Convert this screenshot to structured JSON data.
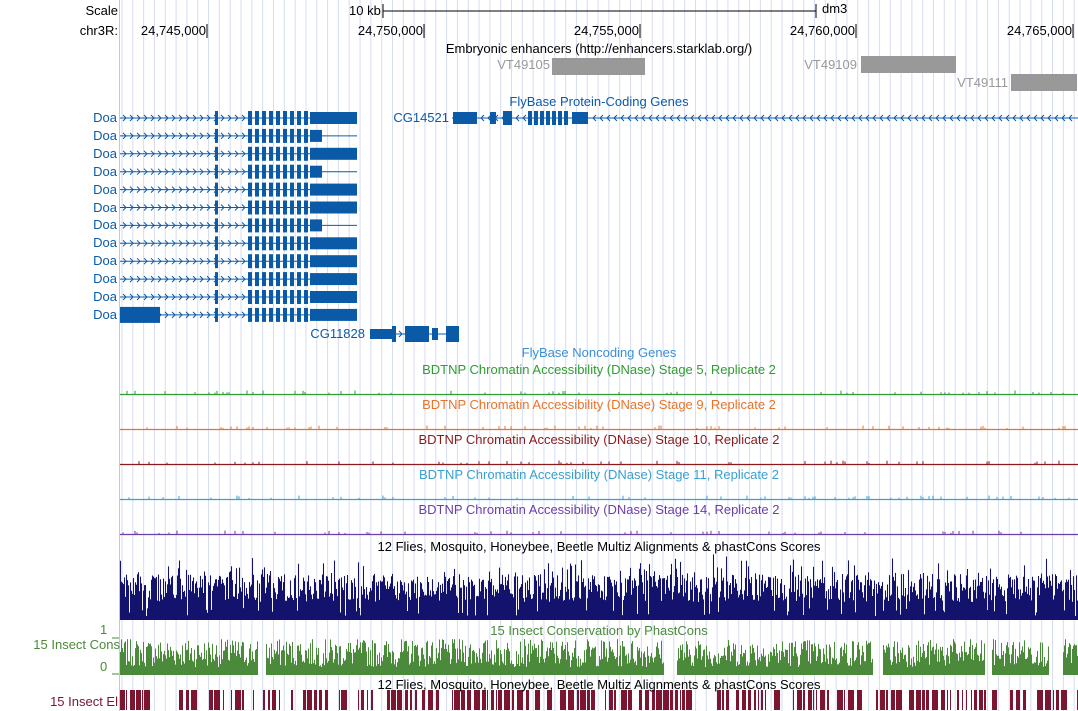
{
  "ruler": {
    "scale_label": "Scale",
    "scale_bar_label": "10 kb",
    "assembly": "dm3",
    "chrom_label": "chr3R:",
    "positions": [
      "24,745,000",
      "24,750,000",
      "24,755,000",
      "24,760,000",
      "24,765,000"
    ]
  },
  "tracks": {
    "enhancers": {
      "title": "Embryonic enhancers (http://enhancers.starklab.org/)",
      "items": [
        "VT49105",
        "VT49109",
        "VT49111"
      ],
      "color": "#999999"
    },
    "protein_coding": {
      "title": "FlyBase Protein-Coding Genes",
      "color": "#0b5aa8",
      "doa_label": "Doa",
      "doa_count": 12,
      "genes": [
        "CG14521",
        "CG11828"
      ]
    },
    "noncoding": {
      "title": "FlyBase Noncoding Genes",
      "color": "#3b8fd6"
    },
    "dnase": [
      {
        "title": "BDTNP Chromatin Accessibility (DNase) Stage 5, Replicate 2",
        "color": "#2e9e2e"
      },
      {
        "title": "BDTNP Chromatin Accessibility (DNase) Stage 9, Replicate 2",
        "color": "#e8742a"
      },
      {
        "title": "BDTNP Chromatin Accessibility (DNase) Stage 10, Replicate 2",
        "color": "#8b1a1a"
      },
      {
        "title": "BDTNP Chromatin Accessibility (DNase) Stage 11, Replicate 2",
        "color": "#3aa0d0"
      },
      {
        "title": "BDTNP Chromatin Accessibility (DNase) Stage 14, Replicate 2",
        "color": "#6a3fa8"
      }
    ],
    "multiz": {
      "title": "12 Flies, Mosquito, Honeybee, Beetle Multiz Alignments & phastCons Scores",
      "color": "#13136e"
    },
    "phastcons": {
      "title": "15 Insect Conservation by PhastCons",
      "side_label": "15 Insect Cons",
      "axis_max": "1",
      "axis_min": "0",
      "color": "#4a8a3a"
    },
    "elements": {
      "title": "12 Flies, Mosquito, Honeybee, Beetle Multiz Alignments & phastCons Scores",
      "side_label": "15 Insect El",
      "color": "#7b1530"
    }
  }
}
